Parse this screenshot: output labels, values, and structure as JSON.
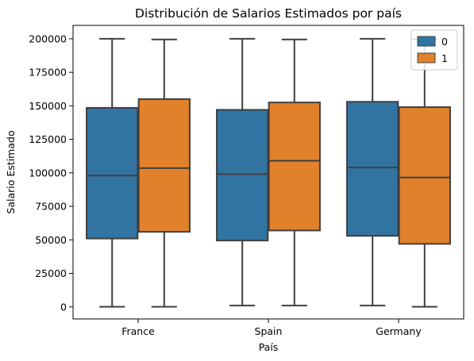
{
  "chart_data": {
    "type": "box",
    "title": "Distribución de Salarios Estimados por país",
    "xlabel": "País",
    "ylabel": "Salario Estimado",
    "categories": [
      "France",
      "Spain",
      "Germany"
    ],
    "ylim": [
      -9000,
      210000
    ],
    "yticks": [
      0,
      25000,
      50000,
      75000,
      100000,
      125000,
      150000,
      175000,
      200000
    ],
    "legend": {
      "position": "top-right",
      "title": ""
    },
    "series": [
      {
        "name": "0",
        "color": "#3274a1",
        "boxes": [
          {
            "category": "France",
            "min": 100,
            "q1": 51000,
            "median": 98000,
            "q3": 148500,
            "max": 200000
          },
          {
            "category": "Spain",
            "min": 1000,
            "q1": 49500,
            "median": 99000,
            "q3": 147000,
            "max": 200000
          },
          {
            "category": "Germany",
            "min": 1000,
            "q1": 53000,
            "median": 104000,
            "q3": 153000,
            "max": 200000
          }
        ]
      },
      {
        "name": "1",
        "color": "#e1812c",
        "boxes": [
          {
            "category": "France",
            "min": 100,
            "q1": 56000,
            "median": 103500,
            "q3": 155000,
            "max": 199500
          },
          {
            "category": "Spain",
            "min": 1000,
            "q1": 57000,
            "median": 109000,
            "q3": 152500,
            "max": 199500
          },
          {
            "category": "Germany",
            "min": 100,
            "q1": 47000,
            "median": 96500,
            "q3": 149000,
            "max": 199500
          }
        ]
      }
    ]
  }
}
